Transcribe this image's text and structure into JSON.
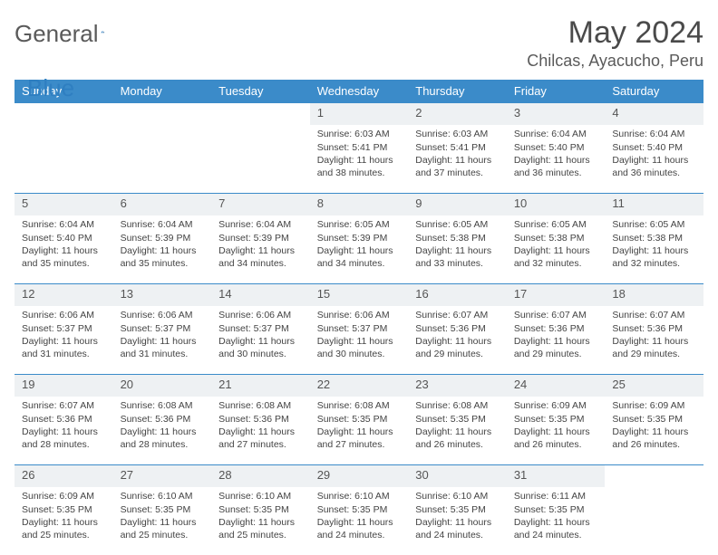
{
  "brand": {
    "name1": "General",
    "name2": "Blue"
  },
  "title": {
    "month": "May 2024",
    "location": "Chilcas, Ayacucho, Peru"
  },
  "colors": {
    "header_bg": "#3b8bc9",
    "header_text": "#ffffff",
    "daynum_bg": "#eef1f3",
    "border": "#3b8bc9",
    "text": "#444444",
    "brand_gray": "#5a5a5a",
    "brand_blue": "#2f7fc1"
  },
  "dayNames": [
    "Sunday",
    "Monday",
    "Tuesday",
    "Wednesday",
    "Thursday",
    "Friday",
    "Saturday"
  ],
  "weeks": [
    [
      null,
      null,
      null,
      {
        "n": "1",
        "sunrise": "Sunrise: 6:03 AM",
        "sunset": "Sunset: 5:41 PM",
        "day": "Daylight: 11 hours and 38 minutes."
      },
      {
        "n": "2",
        "sunrise": "Sunrise: 6:03 AM",
        "sunset": "Sunset: 5:41 PM",
        "day": "Daylight: 11 hours and 37 minutes."
      },
      {
        "n": "3",
        "sunrise": "Sunrise: 6:04 AM",
        "sunset": "Sunset: 5:40 PM",
        "day": "Daylight: 11 hours and 36 minutes."
      },
      {
        "n": "4",
        "sunrise": "Sunrise: 6:04 AM",
        "sunset": "Sunset: 5:40 PM",
        "day": "Daylight: 11 hours and 36 minutes."
      }
    ],
    [
      {
        "n": "5",
        "sunrise": "Sunrise: 6:04 AM",
        "sunset": "Sunset: 5:40 PM",
        "day": "Daylight: 11 hours and 35 minutes."
      },
      {
        "n": "6",
        "sunrise": "Sunrise: 6:04 AM",
        "sunset": "Sunset: 5:39 PM",
        "day": "Daylight: 11 hours and 35 minutes."
      },
      {
        "n": "7",
        "sunrise": "Sunrise: 6:04 AM",
        "sunset": "Sunset: 5:39 PM",
        "day": "Daylight: 11 hours and 34 minutes."
      },
      {
        "n": "8",
        "sunrise": "Sunrise: 6:05 AM",
        "sunset": "Sunset: 5:39 PM",
        "day": "Daylight: 11 hours and 34 minutes."
      },
      {
        "n": "9",
        "sunrise": "Sunrise: 6:05 AM",
        "sunset": "Sunset: 5:38 PM",
        "day": "Daylight: 11 hours and 33 minutes."
      },
      {
        "n": "10",
        "sunrise": "Sunrise: 6:05 AM",
        "sunset": "Sunset: 5:38 PM",
        "day": "Daylight: 11 hours and 32 minutes."
      },
      {
        "n": "11",
        "sunrise": "Sunrise: 6:05 AM",
        "sunset": "Sunset: 5:38 PM",
        "day": "Daylight: 11 hours and 32 minutes."
      }
    ],
    [
      {
        "n": "12",
        "sunrise": "Sunrise: 6:06 AM",
        "sunset": "Sunset: 5:37 PM",
        "day": "Daylight: 11 hours and 31 minutes."
      },
      {
        "n": "13",
        "sunrise": "Sunrise: 6:06 AM",
        "sunset": "Sunset: 5:37 PM",
        "day": "Daylight: 11 hours and 31 minutes."
      },
      {
        "n": "14",
        "sunrise": "Sunrise: 6:06 AM",
        "sunset": "Sunset: 5:37 PM",
        "day": "Daylight: 11 hours and 30 minutes."
      },
      {
        "n": "15",
        "sunrise": "Sunrise: 6:06 AM",
        "sunset": "Sunset: 5:37 PM",
        "day": "Daylight: 11 hours and 30 minutes."
      },
      {
        "n": "16",
        "sunrise": "Sunrise: 6:07 AM",
        "sunset": "Sunset: 5:36 PM",
        "day": "Daylight: 11 hours and 29 minutes."
      },
      {
        "n": "17",
        "sunrise": "Sunrise: 6:07 AM",
        "sunset": "Sunset: 5:36 PM",
        "day": "Daylight: 11 hours and 29 minutes."
      },
      {
        "n": "18",
        "sunrise": "Sunrise: 6:07 AM",
        "sunset": "Sunset: 5:36 PM",
        "day": "Daylight: 11 hours and 29 minutes."
      }
    ],
    [
      {
        "n": "19",
        "sunrise": "Sunrise: 6:07 AM",
        "sunset": "Sunset: 5:36 PM",
        "day": "Daylight: 11 hours and 28 minutes."
      },
      {
        "n": "20",
        "sunrise": "Sunrise: 6:08 AM",
        "sunset": "Sunset: 5:36 PM",
        "day": "Daylight: 11 hours and 28 minutes."
      },
      {
        "n": "21",
        "sunrise": "Sunrise: 6:08 AM",
        "sunset": "Sunset: 5:36 PM",
        "day": "Daylight: 11 hours and 27 minutes."
      },
      {
        "n": "22",
        "sunrise": "Sunrise: 6:08 AM",
        "sunset": "Sunset: 5:35 PM",
        "day": "Daylight: 11 hours and 27 minutes."
      },
      {
        "n": "23",
        "sunrise": "Sunrise: 6:08 AM",
        "sunset": "Sunset: 5:35 PM",
        "day": "Daylight: 11 hours and 26 minutes."
      },
      {
        "n": "24",
        "sunrise": "Sunrise: 6:09 AM",
        "sunset": "Sunset: 5:35 PM",
        "day": "Daylight: 11 hours and 26 minutes."
      },
      {
        "n": "25",
        "sunrise": "Sunrise: 6:09 AM",
        "sunset": "Sunset: 5:35 PM",
        "day": "Daylight: 11 hours and 26 minutes."
      }
    ],
    [
      {
        "n": "26",
        "sunrise": "Sunrise: 6:09 AM",
        "sunset": "Sunset: 5:35 PM",
        "day": "Daylight: 11 hours and 25 minutes."
      },
      {
        "n": "27",
        "sunrise": "Sunrise: 6:10 AM",
        "sunset": "Sunset: 5:35 PM",
        "day": "Daylight: 11 hours and 25 minutes."
      },
      {
        "n": "28",
        "sunrise": "Sunrise: 6:10 AM",
        "sunset": "Sunset: 5:35 PM",
        "day": "Daylight: 11 hours and 25 minutes."
      },
      {
        "n": "29",
        "sunrise": "Sunrise: 6:10 AM",
        "sunset": "Sunset: 5:35 PM",
        "day": "Daylight: 11 hours and 24 minutes."
      },
      {
        "n": "30",
        "sunrise": "Sunrise: 6:10 AM",
        "sunset": "Sunset: 5:35 PM",
        "day": "Daylight: 11 hours and 24 minutes."
      },
      {
        "n": "31",
        "sunrise": "Sunrise: 6:11 AM",
        "sunset": "Sunset: 5:35 PM",
        "day": "Daylight: 11 hours and 24 minutes."
      },
      null
    ]
  ]
}
